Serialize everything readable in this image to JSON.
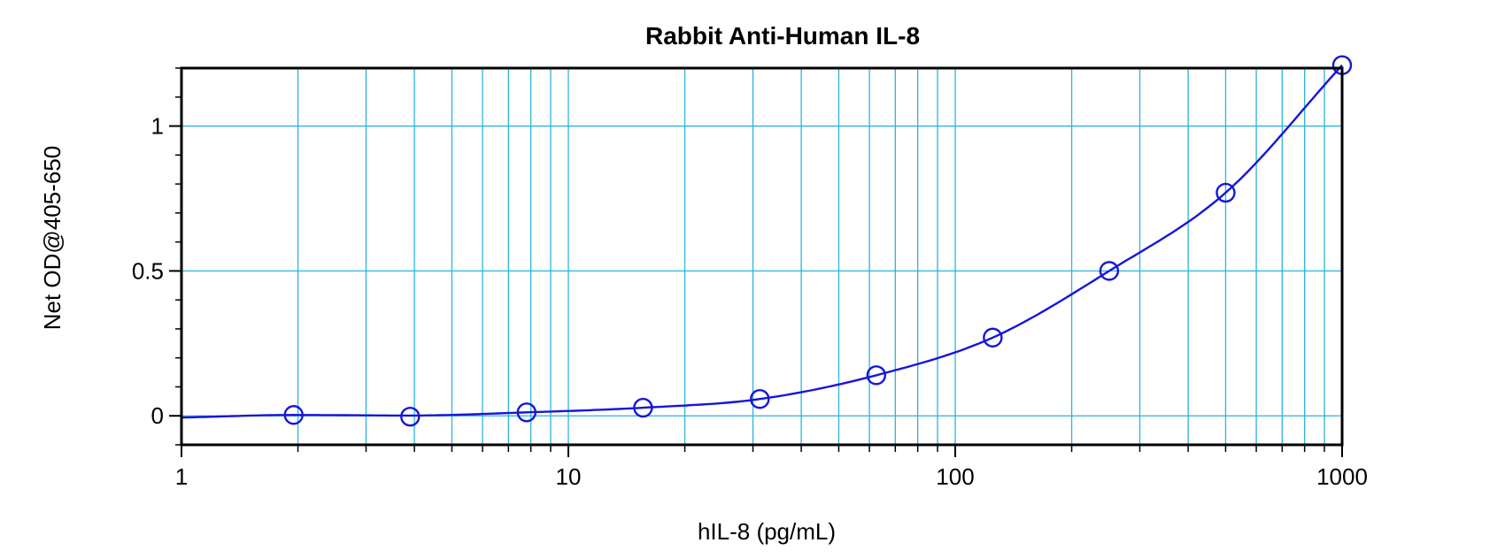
{
  "chart_data": {
    "type": "scatter",
    "title": "Rabbit Anti-Human IL-8",
    "xlabel": "hIL-8 (pg/mL)",
    "ylabel": "Net OD@405-650",
    "x_scale": "log",
    "xlim": [
      1,
      1000
    ],
    "ylim": [
      -0.1,
      1.2
    ],
    "x_ticks": [
      1,
      10,
      100,
      1000
    ],
    "x_tick_labels": [
      "1",
      "10",
      "100",
      "1000"
    ],
    "y_ticks": [
      0,
      0.5,
      1
    ],
    "y_tick_labels": [
      "0",
      "0.5",
      "1"
    ],
    "grid": true,
    "legend": "none",
    "series": [
      {
        "marker": "open-circle",
        "fit": "smooth-curve",
        "x": [
          1.95,
          3.9,
          7.8,
          15.6,
          31.25,
          62.5,
          125,
          250,
          500,
          1000
        ],
        "y": [
          0.003,
          -0.003,
          0.012,
          0.028,
          0.058,
          0.14,
          0.27,
          0.5,
          0.77,
          1.21
        ]
      }
    ],
    "colors": {
      "series": "#1616d8",
      "grid": "#2bb4dc",
      "frame": "#000000"
    }
  }
}
